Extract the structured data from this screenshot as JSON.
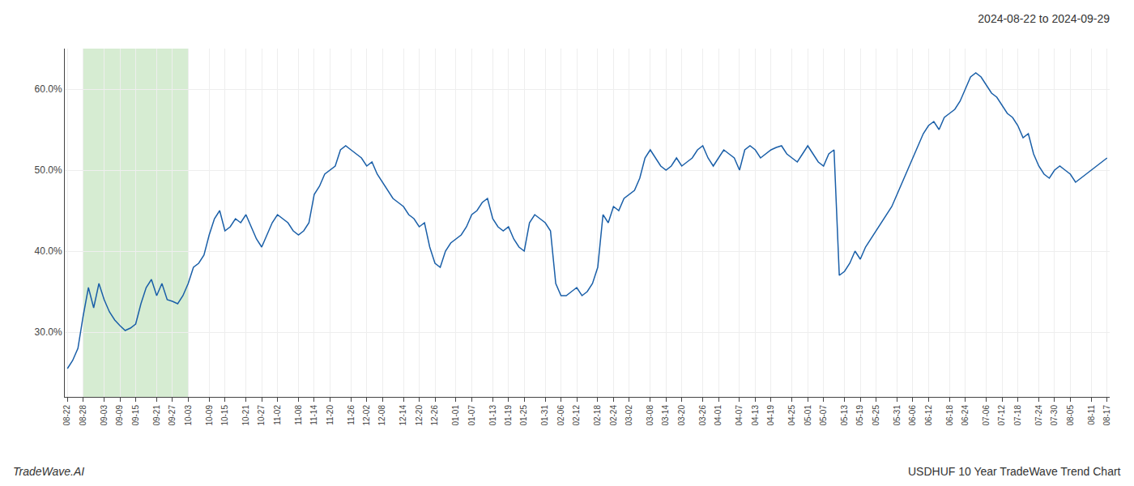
{
  "chart_data": {
    "type": "line",
    "title": "2024-08-22 to 2024-09-29",
    "annotations": [
      {
        "text": "TradeWave.AI"
      },
      {
        "text": "USDHUF 10 Year TradeWave Trend Chart"
      }
    ],
    "categories": [
      "08-22",
      null,
      null,
      "08-28",
      null,
      null,
      null,
      "09-03",
      null,
      null,
      "09-09",
      null,
      null,
      "09-15",
      null,
      null,
      null,
      "09-21",
      null,
      null,
      "09-27",
      null,
      null,
      "10-03",
      null,
      null,
      null,
      "10-09",
      null,
      null,
      "10-15",
      null,
      null,
      null,
      "10-21",
      null,
      null,
      "10-27",
      null,
      null,
      "11-02",
      null,
      null,
      null,
      "11-08",
      null,
      null,
      "11-14",
      null,
      null,
      "11-20",
      null,
      null,
      null,
      "11-26",
      null,
      null,
      "12-02",
      null,
      null,
      "12-08",
      null,
      null,
      null,
      "12-14",
      null,
      null,
      "12-20",
      null,
      null,
      "12-26",
      null,
      null,
      null,
      "01-01",
      null,
      null,
      "01-07",
      null,
      null,
      null,
      "01-13",
      null,
      null,
      "01-19",
      null,
      null,
      "01-25",
      null,
      null,
      null,
      "01-31",
      null,
      null,
      "02-06",
      null,
      null,
      "02-12",
      null,
      null,
      null,
      "02-18",
      null,
      null,
      "02-24",
      null,
      null,
      "03-02",
      null,
      null,
      null,
      "03-08",
      null,
      null,
      "03-14",
      null,
      null,
      "03-20",
      null,
      null,
      null,
      "03-26",
      null,
      null,
      "04-01",
      null,
      null,
      null,
      "04-07",
      null,
      null,
      "04-13",
      null,
      null,
      "04-19",
      null,
      null,
      null,
      "04-25",
      null,
      null,
      "05-01",
      null,
      null,
      "05-07",
      null,
      null,
      null,
      "05-13",
      null,
      null,
      "05-19",
      null,
      null,
      "05-25",
      null,
      null,
      null,
      "05-31",
      null,
      null,
      "06-06",
      null,
      null,
      "06-12",
      null,
      null,
      null,
      "06-18",
      null,
      null,
      "06-24",
      null,
      null,
      null,
      "07-06",
      null,
      null,
      "07-12",
      null,
      null,
      "07-18",
      null,
      null,
      null,
      "07-24",
      null,
      null,
      "07-30",
      null,
      null,
      "08-05",
      null,
      null,
      null,
      "08-11",
      null,
      null,
      "08-17"
    ],
    "values": [
      25.5,
      26.5,
      28.0,
      32.0,
      35.5,
      33.0,
      36.0,
      34.0,
      32.5,
      31.5,
      30.8,
      30.2,
      30.5,
      31.0,
      33.5,
      35.5,
      36.5,
      34.5,
      36.0,
      34.0,
      33.8,
      33.5,
      34.5,
      36.0,
      38.0,
      38.5,
      39.5,
      42.0,
      44.0,
      45.0,
      42.5,
      43.0,
      44.0,
      43.5,
      44.5,
      43.0,
      41.5,
      40.5,
      42.0,
      43.5,
      44.5,
      44.0,
      43.5,
      42.5,
      42.0,
      42.5,
      43.5,
      47.0,
      48.0,
      49.5,
      50.0,
      50.5,
      52.5,
      53.0,
      52.5,
      52.0,
      51.5,
      50.5,
      51.0,
      49.5,
      48.5,
      47.5,
      46.5,
      46.0,
      45.5,
      44.5,
      44.0,
      43.0,
      43.5,
      40.5,
      38.5,
      38.0,
      40.0,
      41.0,
      41.5,
      42.0,
      43.0,
      44.5,
      45.0,
      46.0,
      46.5,
      44.0,
      43.0,
      42.5,
      43.0,
      41.5,
      40.5,
      40.0,
      43.5,
      44.5,
      44.0,
      43.5,
      42.5,
      36.0,
      34.5,
      34.5,
      35.0,
      35.5,
      34.5,
      35.0,
      36.0,
      38.0,
      44.5,
      43.5,
      45.5,
      45.0,
      46.5,
      47.0,
      47.5,
      49.0,
      51.5,
      52.5,
      51.5,
      50.5,
      50.0,
      50.5,
      51.5,
      50.5,
      51.0,
      51.5,
      52.5,
      53.0,
      51.5,
      50.5,
      51.5,
      52.5,
      52.0,
      51.5,
      50.0,
      52.5,
      53.0,
      52.5,
      51.5,
      52.0,
      52.5,
      52.8,
      53.0,
      52.0,
      51.5,
      51.0,
      52.0,
      53.0,
      52.0,
      51.0,
      50.5,
      52.0,
      52.5,
      37.0,
      37.5,
      38.5,
      40.0,
      39.0,
      40.5,
      41.5,
      42.5,
      43.5,
      44.5,
      45.5,
      47.0,
      48.5,
      50.0,
      51.5,
      53.0,
      54.5,
      55.5,
      56.0,
      55.0,
      56.5,
      57.0,
      57.5,
      58.5,
      60.0,
      61.5,
      62.0,
      61.5,
      60.5,
      59.5,
      59.0,
      58.0,
      57.0,
      56.5,
      55.5,
      54.0,
      54.5,
      52.0,
      50.5,
      49.5,
      49.0,
      50.0,
      50.5,
      50.0,
      49.5,
      48.5,
      49.0,
      49.5,
      50.0,
      50.5,
      51.0,
      51.5
    ],
    "color": "#1a5fa8",
    "highlight": {
      "from": "08-28",
      "to": "10-03",
      "color": "#d6ecd2"
    },
    "ylim": [
      22,
      65
    ],
    "yticks": [
      {
        "value": 30.0,
        "label": "30.0%"
      },
      {
        "value": 40.0,
        "label": "40.0%"
      },
      {
        "value": 50.0,
        "label": "50.0%"
      },
      {
        "value": 60.0,
        "label": "60.0%"
      }
    ],
    "grid": true
  }
}
